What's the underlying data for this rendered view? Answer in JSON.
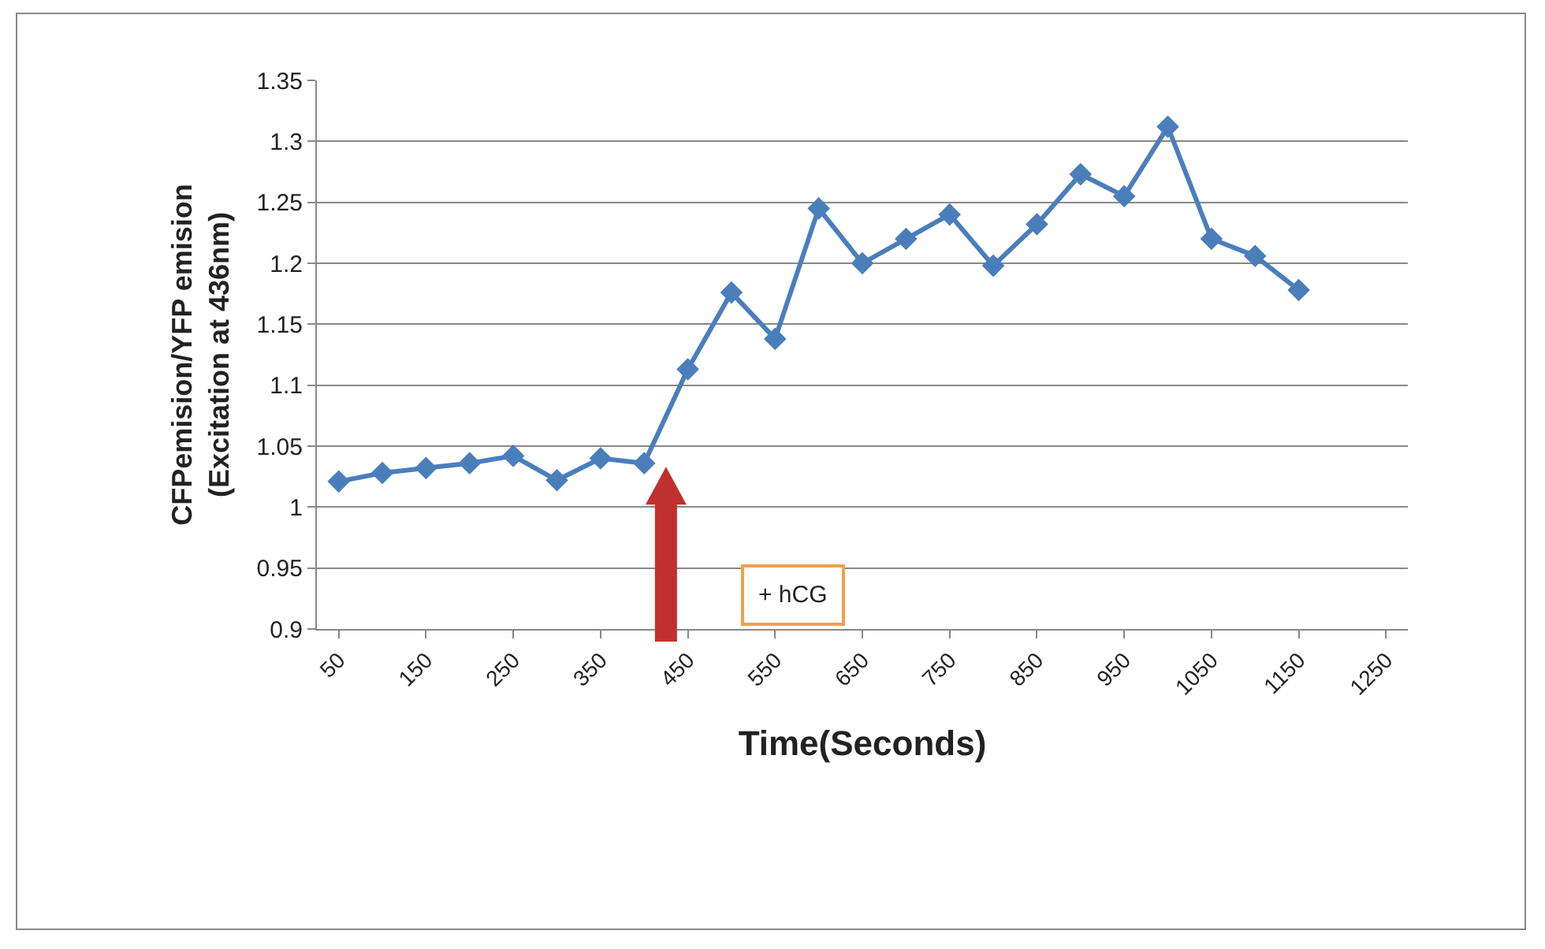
{
  "chart_data": {
    "type": "line",
    "xlabel": "Time(Seconds)",
    "ylabel": "CFPemision/YFP emision\n(Excitation at 436nm)",
    "x": [
      50,
      100,
      150,
      200,
      250,
      300,
      350,
      400,
      450,
      500,
      550,
      600,
      650,
      700,
      750,
      800,
      850,
      900,
      950,
      1000,
      1050,
      1100,
      1150
    ],
    "series": [
      {
        "color": "#4a7ebb",
        "values": [
          1.021,
          1.028,
          1.032,
          1.036,
          1.042,
          1.022,
          1.04,
          1.036,
          1.113,
          1.176,
          1.138,
          1.245,
          1.2,
          1.22,
          1.24,
          1.198,
          1.232,
          1.273,
          1.255,
          1.312,
          1.22,
          1.206,
          1.178
        ]
      }
    ],
    "xlim": [
      25,
      1275
    ],
    "xticks": [
      50,
      150,
      250,
      350,
      450,
      550,
      650,
      750,
      850,
      950,
      1050,
      1150,
      1250
    ],
    "ylim": [
      0.9,
      1.35
    ],
    "yticks": [
      0.9,
      0.95,
      1,
      1.05,
      1.1,
      1.15,
      1.2,
      1.25,
      1.3,
      1.35
    ],
    "grid": "y",
    "marker": "diamond",
    "line_style": "solid",
    "annotations": [
      "+ hCG"
    ]
  }
}
